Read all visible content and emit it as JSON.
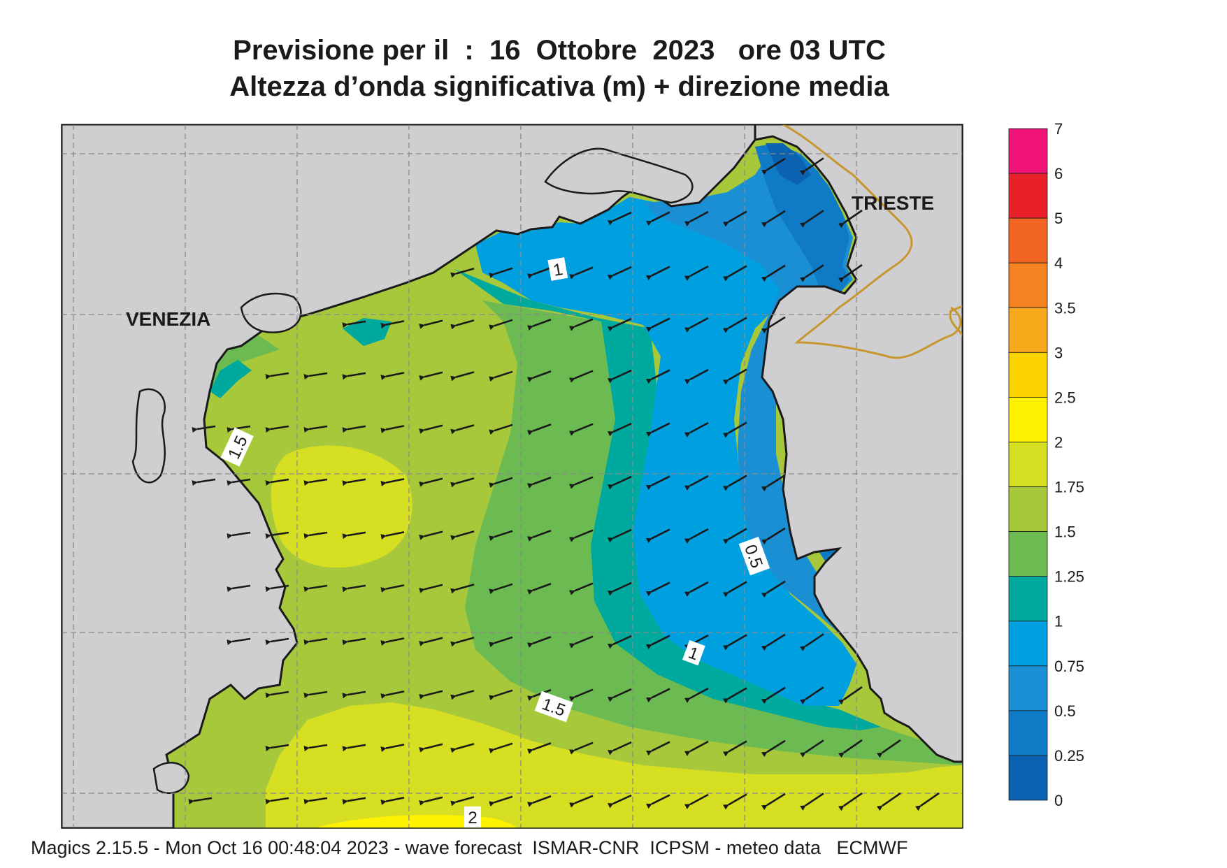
{
  "header": {
    "title_line1": "Previsione per il  :  16  Ottobre  2023   ore 03 UTC",
    "title_line2": "Altezza d’onda significativa (m) + direzione media"
  },
  "map": {
    "cities": [
      "VENEZIA",
      "TRIESTE"
    ],
    "contour_labels": [
      "1",
      "1.5",
      "0.5",
      "1",
      "1.5",
      "2"
    ],
    "arrow_direction": "toward south-west / west",
    "colors": {
      "land": "#cfcfd1",
      "coast": "#1a1a1a",
      "border": "#c8962e",
      "grid": "#8a8a8a"
    }
  },
  "legend": {
    "labels": [
      "7",
      "6",
      "5",
      "4",
      "3.5",
      "3",
      "2.5",
      "2",
      "1.75",
      "1.5",
      "1.25",
      "1",
      "0.75",
      "0.5",
      "0.25",
      "0"
    ],
    "colors": [
      "#f01478",
      "#e8202a",
      "#f26624",
      "#f58220",
      "#f7a81b",
      "#fbd400",
      "#fff200",
      "#d7df23",
      "#a8c83c",
      "#6cbb52",
      "#00a99d",
      "#00a0e0",
      "#1b8fd4",
      "#0f7bc6",
      "#0a62b0"
    ]
  },
  "footer": {
    "text": "Magics 2.15.5 - Mon Oct 16 00:48:04 2023 - wave forecast  ISMAR-CNR  ICPSM - meteo data   ECMWF"
  }
}
